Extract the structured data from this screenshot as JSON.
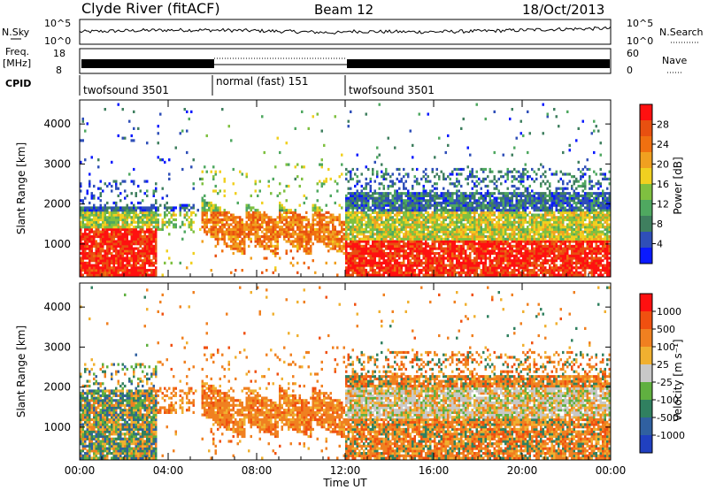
{
  "header": {
    "station": "Clyde River (fitACF)",
    "beam": "Beam 12",
    "date": "18/Oct/2013"
  },
  "small_panels": {
    "nsky_label": "N.Sky",
    "nsky_ticks": [
      "10^5",
      "10^0"
    ],
    "nsearch_label": "N.Search",
    "nsearch_ticks": [
      "10^5",
      "10^0"
    ],
    "freq_label_1": "Freq.",
    "freq_label_2": "[MHz]",
    "freq_ticks": [
      "18",
      "8"
    ],
    "nave_label": "Nave",
    "nave_ticks": [
      "60",
      "0"
    ],
    "cpid_label": "CPID",
    "cpid_segments": [
      {
        "label": "twofsound 3501",
        "start_hour": 0,
        "end_hour": 6
      },
      {
        "label": "normal (fast) 151",
        "start_hour": 6,
        "end_hour": 12
      },
      {
        "label": "twofsound 3501",
        "start_hour": 12,
        "end_hour": 24
      }
    ]
  },
  "chart_data": [
    {
      "type": "heatmap",
      "panel": "power",
      "xlabel": "Time UT",
      "ylabel": "Slant Range [km]",
      "xlim": [
        0,
        24
      ],
      "ylim": [
        180,
        4600
      ],
      "x_tick_labels": [
        "00:00",
        "04:00",
        "08:00",
        "12:00",
        "16:00",
        "20:00",
        "00:00"
      ],
      "x_ticks_hours": [
        0,
        4,
        8,
        12,
        16,
        20,
        24
      ],
      "y_ticks": [
        1000,
        2000,
        3000,
        4000
      ],
      "colorbar_label": "Power [dB]",
      "colorbar_ticks": [
        "28",
        "24",
        "20",
        "16",
        "12",
        "8",
        "4"
      ],
      "colorbar_range": [
        0,
        32
      ],
      "colors": [
        "#0a1aff",
        "#2f4fb8",
        "#3f7f5f",
        "#4fa860",
        "#7fc040",
        "#f0d020",
        "#f0a020",
        "#f07010",
        "#e85010",
        "#ff1010"
      ]
    },
    {
      "type": "heatmap",
      "panel": "velocity",
      "xlabel": "Time UT",
      "ylabel": "Slant Range [km]",
      "xlim": [
        0,
        24
      ],
      "ylim": [
        180,
        4600
      ],
      "x_tick_labels": [
        "00:00",
        "04:00",
        "08:00",
        "12:00",
        "16:00",
        "20:00",
        "00:00"
      ],
      "x_ticks_hours": [
        0,
        4,
        8,
        12,
        16,
        20,
        24
      ],
      "y_ticks": [
        1000,
        2000,
        3000,
        4000
      ],
      "colorbar_label": "Velocity [m s⁻¹]",
      "colorbar_ticks": [
        "1000",
        "500",
        "100",
        "25",
        "-25",
        "-100",
        "-500",
        "-1000"
      ],
      "colors": [
        "#2040c0",
        "#3060a0",
        "#308060",
        "#60b040",
        "#c8c8c8",
        "#f0b030",
        "#f08020",
        "#f05010",
        "#ff1010"
      ]
    }
  ]
}
